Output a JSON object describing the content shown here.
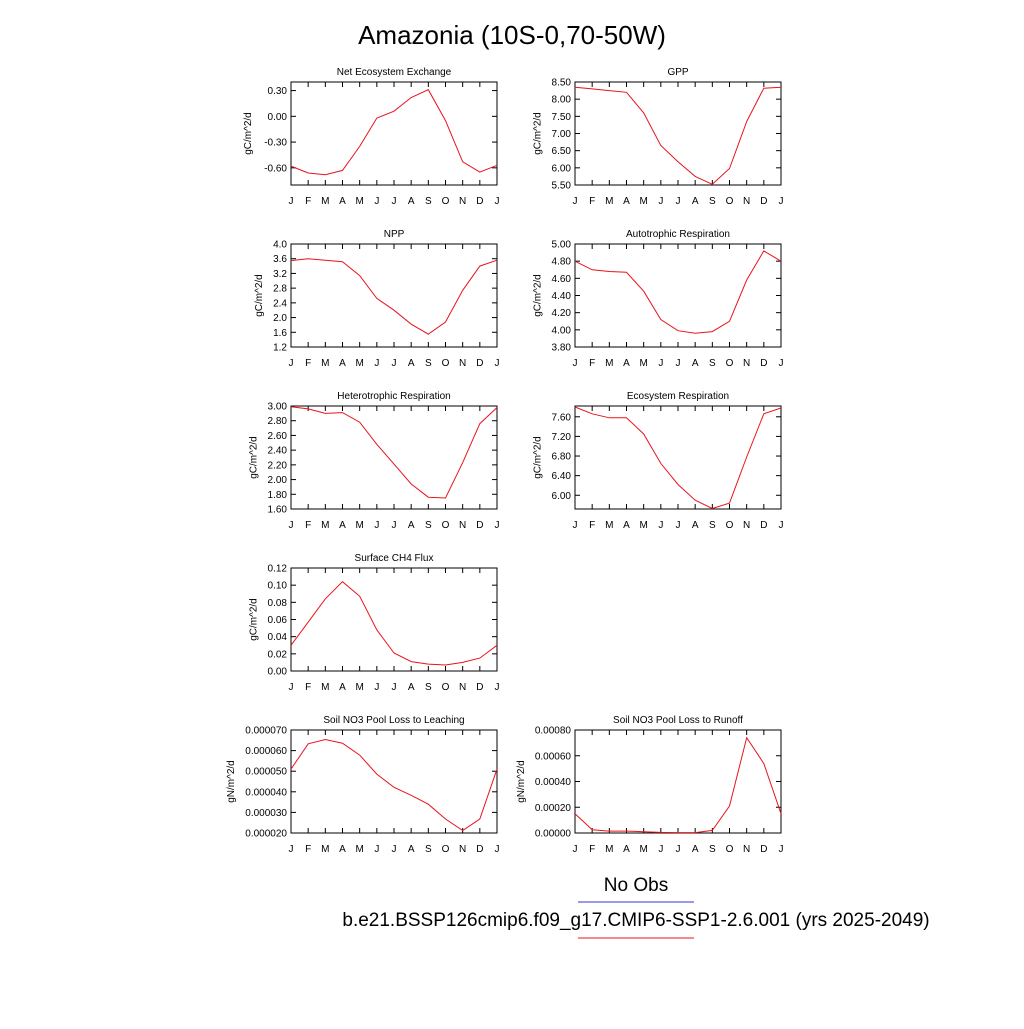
{
  "page_title": "Amazonia (10S-0,70-50W)",
  "legend": {
    "obs_label": "No Obs",
    "obs_color": "#3333cc",
    "model_label": "b.e21.BSSP126cmip6.f09_g17.CMIP6-SSP1-2.6.001 (yrs 2025-2049)",
    "model_color": "#e8141c"
  },
  "line_color": "#e8141c",
  "chart_data": [
    {
      "type": "line",
      "title": "Net Ecosystem Exchange",
      "ylabel": "gC/m^2/d",
      "categories": [
        "J",
        "F",
        "M",
        "A",
        "M",
        "J",
        "J",
        "A",
        "S",
        "O",
        "N",
        "D",
        "J"
      ],
      "values": [
        -0.58,
        -0.66,
        -0.68,
        -0.63,
        -0.35,
        -0.02,
        0.06,
        0.22,
        0.31,
        -0.05,
        -0.53,
        -0.65,
        -0.57
      ],
      "ylim": [
        -0.8,
        0.4
      ],
      "yticks": [
        0.3,
        0.0,
        -0.3,
        -0.6
      ],
      "ytick_labels": [
        "0.30",
        "0.00",
        "-0.30",
        "-0.60"
      ]
    },
    {
      "type": "line",
      "title": "GPP",
      "ylabel": "gC/m^2/d",
      "categories": [
        "J",
        "F",
        "M",
        "A",
        "M",
        "J",
        "J",
        "A",
        "S",
        "O",
        "N",
        "D",
        "J"
      ],
      "values": [
        8.35,
        8.3,
        8.25,
        8.2,
        7.6,
        6.65,
        6.18,
        5.75,
        5.52,
        5.98,
        7.35,
        8.32,
        8.35
      ],
      "ylim": [
        5.5,
        8.5
      ],
      "yticks": [
        8.5,
        8.0,
        7.5,
        7.0,
        6.5,
        6.0,
        5.5
      ],
      "ytick_labels": [
        "8.50",
        "8.00",
        "7.50",
        "7.00",
        "6.50",
        "6.00",
        "5.50"
      ]
    },
    {
      "type": "line",
      "title": "NPP",
      "ylabel": "gC/m^2/d",
      "categories": [
        "J",
        "F",
        "M",
        "A",
        "M",
        "J",
        "J",
        "A",
        "S",
        "O",
        "N",
        "D",
        "J"
      ],
      "values": [
        3.55,
        3.6,
        3.56,
        3.52,
        3.14,
        2.52,
        2.2,
        1.82,
        1.55,
        1.88,
        2.74,
        3.4,
        3.56
      ],
      "ylim": [
        1.2,
        4.0
      ],
      "yticks": [
        4.0,
        3.6,
        3.2,
        2.8,
        2.4,
        2.0,
        1.6,
        1.2
      ],
      "ytick_labels": [
        "4.0",
        "3.6",
        "3.2",
        "2.8",
        "2.4",
        "2.0",
        "1.6",
        "1.2"
      ]
    },
    {
      "type": "line",
      "title": "Autotrophic Respiration",
      "ylabel": "gC/m^2/d",
      "categories": [
        "J",
        "F",
        "M",
        "A",
        "M",
        "J",
        "J",
        "A",
        "S",
        "O",
        "N",
        "D",
        "J"
      ],
      "values": [
        4.8,
        4.7,
        4.68,
        4.67,
        4.45,
        4.12,
        3.99,
        3.96,
        3.98,
        4.1,
        4.58,
        4.92,
        4.8
      ],
      "ylim": [
        3.8,
        5.0
      ],
      "yticks": [
        5.0,
        4.8,
        4.6,
        4.4,
        4.2,
        4.0,
        3.8
      ],
      "ytick_labels": [
        "5.00",
        "4.80",
        "4.60",
        "4.40",
        "4.20",
        "4.00",
        "3.80"
      ]
    },
    {
      "type": "line",
      "title": "Heterotrophic Respiration",
      "ylabel": "gC/m^2/d",
      "categories": [
        "J",
        "F",
        "M",
        "A",
        "M",
        "J",
        "J",
        "A",
        "S",
        "O",
        "N",
        "D",
        "J"
      ],
      "values": [
        2.99,
        2.96,
        2.9,
        2.91,
        2.78,
        2.48,
        2.21,
        1.94,
        1.76,
        1.75,
        2.23,
        2.76,
        2.98
      ],
      "ylim": [
        1.6,
        3.0
      ],
      "yticks": [
        3.0,
        2.8,
        2.6,
        2.4,
        2.2,
        2.0,
        1.8,
        1.6
      ],
      "ytick_labels": [
        "3.00",
        "2.80",
        "2.60",
        "2.40",
        "2.20",
        "2.00",
        "1.80",
        "1.60"
      ]
    },
    {
      "type": "line",
      "title": "Ecosystem Respiration",
      "ylabel": "gC/m^2/d",
      "categories": [
        "J",
        "F",
        "M",
        "A",
        "M",
        "J",
        "J",
        "A",
        "S",
        "O",
        "N",
        "D",
        "J"
      ],
      "values": [
        7.8,
        7.66,
        7.58,
        7.58,
        7.25,
        6.65,
        6.22,
        5.9,
        5.73,
        5.84,
        6.78,
        7.66,
        7.78
      ],
      "ylim": [
        5.72,
        7.82
      ],
      "yticks": [
        7.6,
        7.2,
        6.8,
        6.4,
        6.0
      ],
      "ytick_labels": [
        "7.60",
        "7.20",
        "6.80",
        "6.40",
        "6.00"
      ]
    },
    {
      "type": "line",
      "title": "Surface CH4 Flux",
      "ylabel": "gC/m^2/d",
      "categories": [
        "J",
        "F",
        "M",
        "A",
        "M",
        "J",
        "J",
        "A",
        "S",
        "O",
        "N",
        "D",
        "J"
      ],
      "values": [
        0.03,
        0.057,
        0.084,
        0.104,
        0.087,
        0.048,
        0.021,
        0.011,
        0.008,
        0.007,
        0.01,
        0.015,
        0.03
      ],
      "ylim": [
        0.0,
        0.12
      ],
      "yticks": [
        0.12,
        0.1,
        0.08,
        0.06,
        0.04,
        0.02,
        0.0
      ],
      "ytick_labels": [
        "0.12",
        "0.10",
        "0.08",
        "0.06",
        "0.04",
        "0.02",
        "0.00"
      ]
    },
    {
      "type": "line",
      "title": "Soil NO3 Pool Loss to Leaching",
      "ylabel": "gN/m^2/d",
      "categories": [
        "J",
        "F",
        "M",
        "A",
        "M",
        "J",
        "J",
        "A",
        "S",
        "O",
        "N",
        "D",
        "J"
      ],
      "values": [
        5.1e-05,
        6.33e-05,
        6.54e-05,
        6.36e-05,
        5.78e-05,
        4.86e-05,
        4.22e-05,
        3.83e-05,
        3.4e-05,
        2.68e-05,
        2.12e-05,
        2.68e-05,
        5.1e-05
      ],
      "ylim": [
        2e-05,
        7e-05
      ],
      "yticks": [
        7e-05,
        6e-05,
        5e-05,
        4e-05,
        3e-05,
        2e-05
      ],
      "ytick_labels": [
        "0.000070",
        "0.000060",
        "0.000050",
        "0.000040",
        "0.000030",
        "0.000020"
      ]
    },
    {
      "type": "line",
      "title": "Soil NO3 Pool Loss to Runoff",
      "ylabel": "gN/m^2/d",
      "categories": [
        "J",
        "F",
        "M",
        "A",
        "M",
        "J",
        "J",
        "A",
        "S",
        "O",
        "N",
        "D",
        "J"
      ],
      "values": [
        0.00015,
        2.5e-05,
        1.5e-05,
        1.5e-05,
        1e-05,
        5e-06,
        3e-06,
        3e-06,
        2e-05,
        0.00021,
        0.00074,
        0.00054,
        0.00015
      ],
      "ylim": [
        0.0,
        0.0008
      ],
      "yticks": [
        0.0008,
        0.0006,
        0.0004,
        0.0002,
        0.0
      ],
      "ytick_labels": [
        "0.00080",
        "0.00060",
        "0.00040",
        "0.00020",
        "0.00000"
      ]
    }
  ]
}
